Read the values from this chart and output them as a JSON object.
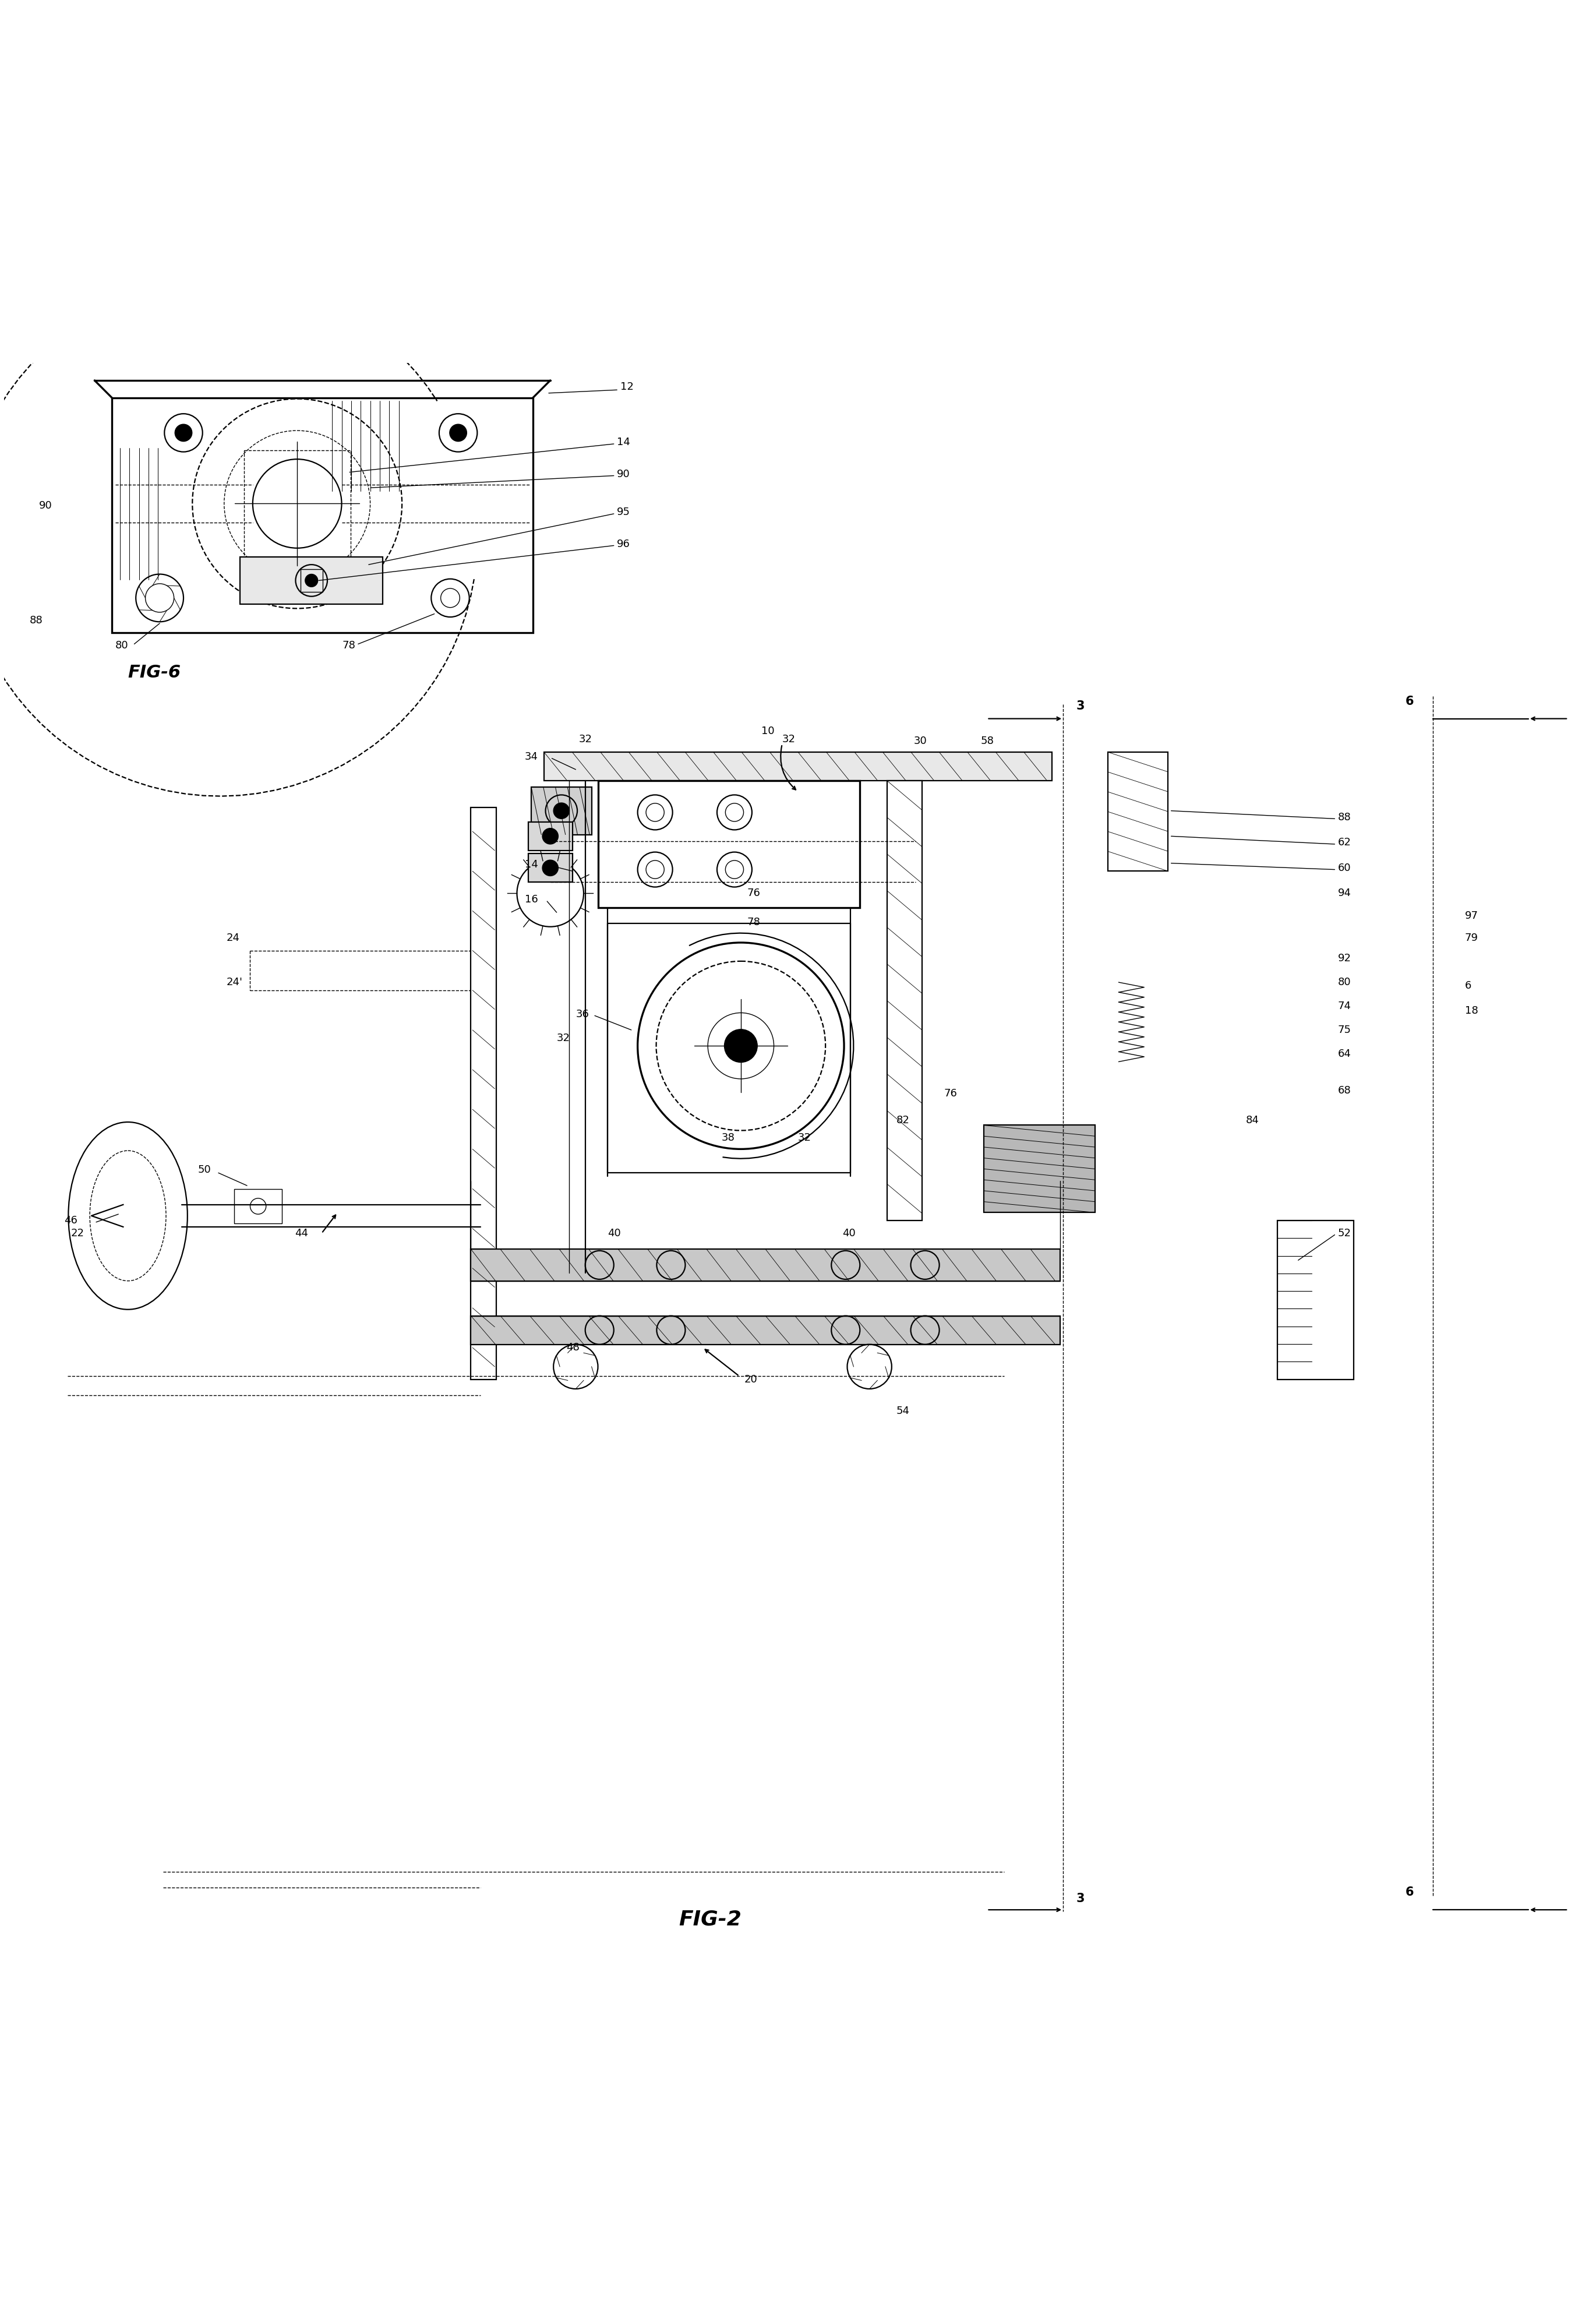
{
  "background_color": "#ffffff",
  "line_color": "#000000",
  "fig_width": 27.4,
  "fig_height": 39.72,
  "fig6_label": "FIG-6",
  "fig2_label": "FIG-2",
  "ref_fontsize": 13,
  "fig_label_fontsize": 26,
  "section_fontsize": 15
}
